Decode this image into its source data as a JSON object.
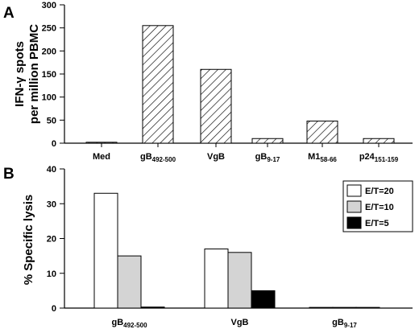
{
  "colors": {
    "hatch": "#000000",
    "e20": "#ffffff",
    "e10": "#d4d4d4",
    "e5": "#000000"
  },
  "chart_data": [
    {
      "type": "bar",
      "panel_label": "A",
      "ylabel_lines": [
        "IFN-γ spots",
        "per million PBMC"
      ],
      "xlabel": "",
      "categories": [
        {
          "main": "Med",
          "sub": ""
        },
        {
          "main": "gB",
          "sub": "492-500"
        },
        {
          "main": "VgB",
          "sub": ""
        },
        {
          "main": "gB",
          "sub": "9-17"
        },
        {
          "main": "M1",
          "sub": "58-66"
        },
        {
          "main": "p24",
          "sub": "151-159"
        }
      ],
      "values": [
        2,
        255,
        160,
        10,
        48,
        10
      ],
      "ylim": [
        0,
        300
      ],
      "yticks": [
        "0",
        "50",
        "100",
        "150",
        "200",
        "250",
        "300"
      ],
      "fill": "diagonal hatch",
      "grid": false
    },
    {
      "type": "bar",
      "panel_label": "B",
      "ylabel": "% Specific lysis",
      "xlabel": "",
      "categories": [
        {
          "main": "gB",
          "sub": "492-500"
        },
        {
          "main": "VgB",
          "sub": ""
        },
        {
          "main": "gB",
          "sub": "9-17"
        }
      ],
      "series": [
        {
          "name": "E/T=20",
          "values": [
            33,
            17,
            0.2
          ]
        },
        {
          "name": "E/T=10",
          "values": [
            15,
            16,
            0.2
          ]
        },
        {
          "name": "E/T=5",
          "values": [
            0.3,
            5,
            0.2
          ]
        }
      ],
      "ylim": [
        0,
        40
      ],
      "yticks": [
        "0",
        "10",
        "20",
        "30",
        "40"
      ],
      "legend_position": "top-right",
      "grid": false
    }
  ]
}
